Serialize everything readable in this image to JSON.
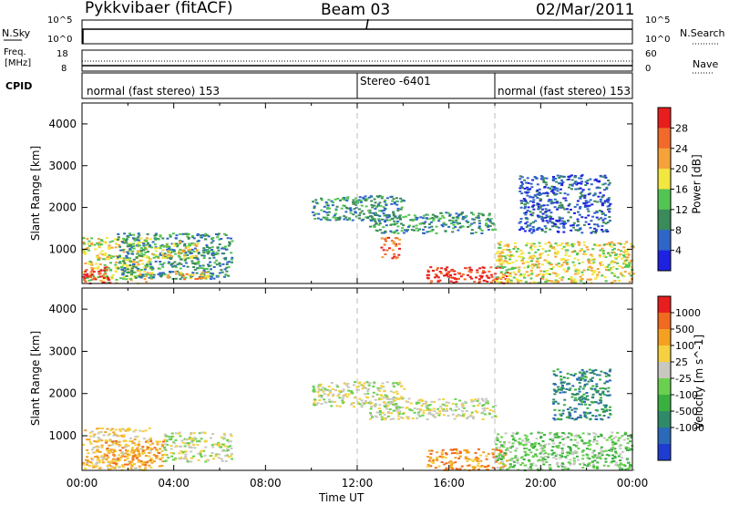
{
  "header": {
    "title": "Pykkvibaer (fitACF)",
    "beam": "Beam 03",
    "date": "02/Mar/2011"
  },
  "strip_panels": {
    "nsky_label": "N.Sky",
    "nsky_ticks": [
      "10^5",
      "10^0"
    ],
    "nsearch_label": "N.Search",
    "nsearch_ticks": [
      "10^5",
      "10^0"
    ],
    "freq_label": "Freq.",
    "freq_unit": "[MHz]",
    "freq_ticks": [
      "18",
      "8"
    ],
    "nave_label": "Nave",
    "nave_ticks": [
      "60",
      "0"
    ],
    "cpid_label": "CPID",
    "cpid_segments": [
      {
        "label": "normal (fast stereo) 153",
        "start_hour": 0
      },
      {
        "label": "Stereo -6401",
        "start_hour": 12
      },
      {
        "label": "normal (fast stereo) 153",
        "start_hour": 18
      }
    ]
  },
  "chart_data": [
    {
      "type": "heatmap",
      "name": "power",
      "xlabel": "",
      "ylabel": "Slant Range [km]",
      "xlim": [
        0,
        24
      ],
      "ylim": [
        180,
        4500
      ],
      "yticks": [
        1000,
        2000,
        3000,
        4000
      ],
      "colorbar_label": "Power [dB]",
      "colorbar_ticks": [
        4,
        8,
        12,
        16,
        20,
        24,
        28
      ],
      "colorscale": [
        "#1e22e0",
        "#2f66c8",
        "#3a8a5a",
        "#52c452",
        "#f2e640",
        "#f5a23a",
        "#f26a2a",
        "#e81e1e"
      ],
      "echo_regions": [
        {
          "x_start": 0.0,
          "x_end": 3.0,
          "y_start": 200,
          "y_end": 1300,
          "level": 4
        },
        {
          "x_start": 0.0,
          "x_end": 1.2,
          "y_start": 200,
          "y_end": 600,
          "level": 7
        },
        {
          "x_start": 1.5,
          "x_end": 6.5,
          "y_start": 300,
          "y_end": 1400,
          "level": 2
        },
        {
          "x_start": 3.0,
          "x_end": 5.0,
          "y_start": 800,
          "y_end": 1200,
          "level": 4
        },
        {
          "x_start": 3.5,
          "x_end": 5.5,
          "y_start": 300,
          "y_end": 500,
          "level": 5
        },
        {
          "x_start": 10.0,
          "x_end": 14.0,
          "y_start": 1700,
          "y_end": 2300,
          "level": 2
        },
        {
          "x_start": 12.5,
          "x_end": 18.0,
          "y_start": 1400,
          "y_end": 1900,
          "level": 2
        },
        {
          "x_start": 13.0,
          "x_end": 13.8,
          "y_start": 800,
          "y_end": 1300,
          "level": 6
        },
        {
          "x_start": 15.0,
          "x_end": 18.5,
          "y_start": 200,
          "y_end": 600,
          "level": 7
        },
        {
          "x_start": 18.0,
          "x_end": 24.0,
          "y_start": 200,
          "y_end": 1200,
          "level": 4
        },
        {
          "x_start": 19.0,
          "x_end": 23.0,
          "y_start": 1400,
          "y_end": 2800,
          "level": 1
        }
      ]
    },
    {
      "type": "heatmap",
      "name": "velocity",
      "xlabel": "Time UT",
      "ylabel": "Slant Range [km]",
      "xlim": [
        0,
        24
      ],
      "ylim": [
        180,
        4500
      ],
      "xticks": [
        "00:00",
        "04:00",
        "08:00",
        "12:00",
        "16:00",
        "20:00",
        "00:00"
      ],
      "yticks": [
        1000,
        2000,
        3000,
        4000
      ],
      "colorbar_label": "Velocity [m s^-1]",
      "colorbar_ticks": [
        1000,
        500,
        100,
        25,
        -25,
        -100,
        -500,
        -1000
      ],
      "colorscale": [
        "#1e3cd0",
        "#2a6ab8",
        "#2f8a6a",
        "#3ab040",
        "#6ad050",
        "#c8c8c0",
        "#f5d040",
        "#f5a020",
        "#f06a20",
        "#e81e1e"
      ],
      "echo_regions": [
        {
          "x_start": 0.0,
          "x_end": 3.0,
          "y_start": 200,
          "y_end": 1200,
          "level": 6
        },
        {
          "x_start": 1.0,
          "x_end": 3.5,
          "y_start": 300,
          "y_end": 900,
          "level": 7
        },
        {
          "x_start": 3.5,
          "x_end": 6.5,
          "y_start": 400,
          "y_end": 1100,
          "level": 5
        },
        {
          "x_start": 10.0,
          "x_end": 14.0,
          "y_start": 1700,
          "y_end": 2300,
          "level": 5
        },
        {
          "x_start": 12.5,
          "x_end": 18.0,
          "y_start": 1400,
          "y_end": 1900,
          "level": 5
        },
        {
          "x_start": 15.0,
          "x_end": 18.5,
          "y_start": 200,
          "y_end": 700,
          "level": 7
        },
        {
          "x_start": 18.0,
          "x_end": 24.0,
          "y_start": 200,
          "y_end": 1100,
          "level": 4
        },
        {
          "x_start": 20.5,
          "x_end": 23.0,
          "y_start": 1400,
          "y_end": 2600,
          "level": 2
        }
      ]
    }
  ]
}
